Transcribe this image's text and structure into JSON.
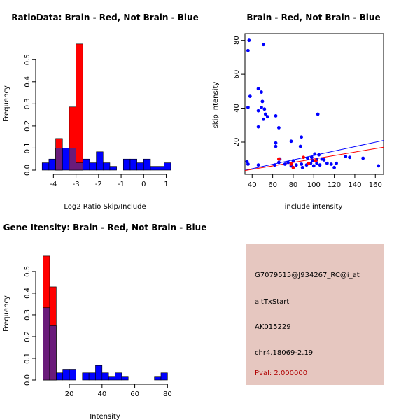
{
  "colors": {
    "red": "#ff0000",
    "blue": "#0000ff",
    "overlap": "#6a1b7a",
    "info_bg": "#e6c7c0",
    "pval": "#b00000"
  },
  "chart_data": [
    {
      "id": "ratio",
      "type": "bar",
      "title": "RatioData: Brain - Red, Not Brain - Blue",
      "xlabel": "Log2 Ratio Skip/Include",
      "ylabel": "Frequency",
      "xlim": [
        -4.6,
        1.2
      ],
      "ylim": [
        0,
        0.58
      ],
      "xticks": [
        -4,
        -3,
        -2,
        -1,
        0,
        1
      ],
      "yticks": [
        0.0,
        0.1,
        0.2,
        0.3,
        0.4,
        0.5
      ],
      "bin_width": 0.3,
      "series": [
        {
          "name": "Not Brain",
          "color": "#0000ff",
          "bin_starts": [
            -4.5,
            -4.2,
            -3.9,
            -3.6,
            -3.3,
            -3.0,
            -2.7,
            -2.4,
            -2.1,
            -1.8,
            -1.5,
            -1.2,
            -0.9,
            -0.6,
            -0.3,
            0.0,
            0.3,
            0.6,
            0.9
          ],
          "values": [
            0.033,
            0.05,
            0.1,
            0.1,
            0.1,
            0.033,
            0.05,
            0.033,
            0.083,
            0.033,
            0.017,
            0.0,
            0.05,
            0.05,
            0.033,
            0.05,
            0.017,
            0.017,
            0.033
          ]
        },
        {
          "name": "Brain",
          "color": "#ff0000",
          "bin_starts": [
            -3.9,
            -3.3,
            -3.0
          ],
          "values": [
            0.143,
            0.286,
            0.571
          ]
        }
      ]
    },
    {
      "id": "scatter",
      "type": "scatter",
      "title": "Brain - Red, Not Brain - Blue",
      "xlabel": "include intensity",
      "ylabel": "skip intensity",
      "xlim": [
        33,
        168
      ],
      "ylim": [
        1,
        84
      ],
      "xticks": [
        40,
        60,
        80,
        100,
        120,
        140,
        160
      ],
      "yticks": [
        20,
        40,
        60,
        80
      ],
      "series": [
        {
          "name": "Not Brain",
          "color": "#0000ff",
          "points": [
            [
              37,
              80
            ],
            [
              36,
              74
            ],
            [
              51,
              77.5
            ],
            [
              36,
              40.5
            ],
            [
              38,
              47
            ],
            [
              46,
              51.5
            ],
            [
              49,
              49.5
            ],
            [
              50,
              44
            ],
            [
              46,
              38.5
            ],
            [
              49,
              40.5
            ],
            [
              52,
              39.5
            ],
            [
              53,
              36.5
            ],
            [
              55,
              35
            ],
            [
              51,
              33.5
            ],
            [
              63,
              35.5
            ],
            [
              66,
              28.5
            ],
            [
              46,
              29
            ],
            [
              63,
              19.5
            ],
            [
              63,
              17.5
            ],
            [
              78,
              20.5
            ],
            [
              88,
              23
            ],
            [
              87,
              17.5
            ],
            [
              104,
              36.5
            ],
            [
              67,
              10
            ],
            [
              75,
              8
            ],
            [
              80,
              9
            ],
            [
              35,
              8.5
            ],
            [
              36,
              7
            ],
            [
              46,
              6.5
            ],
            [
              62,
              6.5
            ],
            [
              66,
              8
            ],
            [
              72,
              7
            ],
            [
              78,
              6
            ],
            [
              83,
              6.5
            ],
            [
              88,
              7
            ],
            [
              89,
              5
            ],
            [
              93,
              6.5
            ],
            [
              97,
              7.5
            ],
            [
              99,
              9
            ],
            [
              100,
              6
            ],
            [
              101,
              13
            ],
            [
              103,
              7.5
            ],
            [
              105,
              12.5
            ],
            [
              106,
              6.5
            ],
            [
              108,
              10
            ],
            [
              110,
              9.5
            ],
            [
              113,
              7.5
            ],
            [
              117,
              7
            ],
            [
              120,
              5
            ],
            [
              122,
              7.5
            ],
            [
              131,
              11.5
            ],
            [
              135,
              11
            ],
            [
              148,
              10.5
            ],
            [
              163,
              6
            ],
            [
              94,
              10.5
            ],
            [
              98,
              11
            ],
            [
              103,
              9.5
            ]
          ],
          "fit": [
            [
              33,
              3.4
            ],
            [
              168,
              21
            ]
          ]
        },
        {
          "name": "Brain",
          "color": "#ff0000",
          "points": [
            [
              66,
              10
            ],
            [
              78,
              7
            ],
            [
              80,
              5
            ],
            [
              90,
              11
            ],
            [
              95,
              7.5
            ],
            [
              102,
              9
            ]
          ],
          "fit": [
            [
              33,
              3.2
            ],
            [
              168,
              17
            ]
          ]
        }
      ]
    },
    {
      "id": "gene",
      "type": "bar",
      "title": "Gene Itensity: Brain - Red, Not Brain - Blue",
      "xlabel": "Intensity",
      "ylabel": "Frequency",
      "xlim": [
        2,
        82
      ],
      "ylim": [
        0,
        0.59
      ],
      "xticks": [
        20,
        40,
        60,
        80
      ],
      "yticks": [
        0.0,
        0.1,
        0.2,
        0.3,
        0.4,
        0.5
      ],
      "bin_width": 4,
      "series": [
        {
          "name": "Not Brain",
          "color": "#0000ff",
          "bin_starts": [
            4,
            8,
            12,
            16,
            20,
            24,
            28,
            32,
            36,
            40,
            44,
            48,
            52,
            56,
            60,
            64,
            68,
            72,
            76
          ],
          "values": [
            0.333,
            0.25,
            0.033,
            0.05,
            0.05,
            0.0,
            0.033,
            0.033,
            0.067,
            0.033,
            0.017,
            0.033,
            0.017,
            0.0,
            0.0,
            0.0,
            0.0,
            0.017,
            0.033
          ]
        },
        {
          "name": "Brain",
          "color": "#ff0000",
          "bin_starts": [
            4,
            8
          ],
          "values": [
            0.571,
            0.429
          ]
        }
      ]
    }
  ],
  "info": {
    "probe": "G7079515@J934267_RC@i_at",
    "event": "altTxStart",
    "accession": "AK015229",
    "location": "chr4.18069-2.19",
    "pval": "Pval: 2.000000"
  }
}
